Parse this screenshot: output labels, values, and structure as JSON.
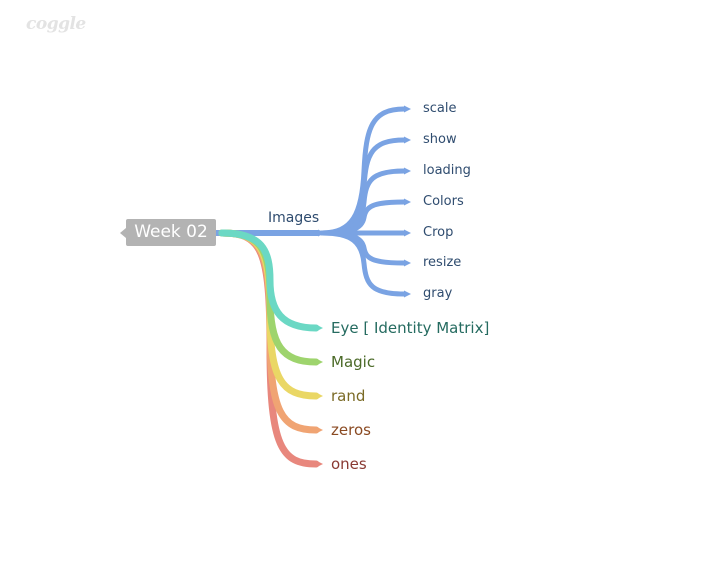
{
  "logo": "coggle",
  "root": {
    "label": "Week 02"
  },
  "images_branch": {
    "label": "Images",
    "color": "#7aa3e3",
    "children": [
      "scale",
      "show",
      "loading",
      "Colors",
      "Crop",
      "resize",
      "gray"
    ]
  },
  "lower_branches": [
    {
      "label": "Eye [ Identity Matrix]",
      "color": "#6bd8c4",
      "text_color": "#256b60"
    },
    {
      "label": "Magic",
      "color": "#9ed46d",
      "text_color": "#4b6a28"
    },
    {
      "label": "rand",
      "color": "#ead765",
      "text_color": "#7a6a25"
    },
    {
      "label": "zeros",
      "color": "#f0a473",
      "text_color": "#8a4a22"
    },
    {
      "label": "ones",
      "color": "#e8877d",
      "text_color": "#8a3a33"
    }
  ]
}
